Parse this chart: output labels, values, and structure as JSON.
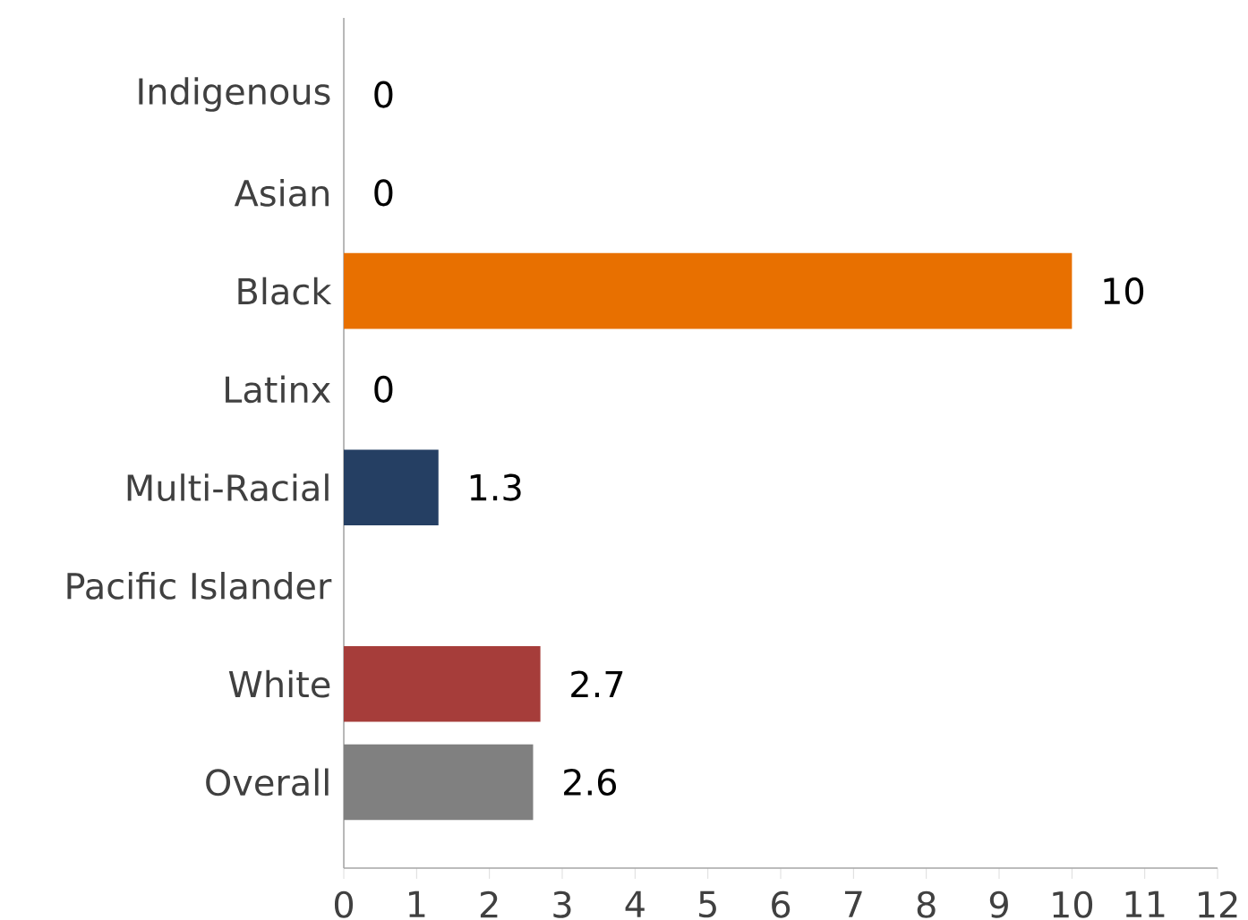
{
  "chart_data": {
    "type": "bar",
    "orientation": "horizontal",
    "categories": [
      "Indigenous",
      "Asian",
      "Black",
      "Latinx",
      "Multi-Racial",
      "Pacific Islander",
      "White",
      "Overall"
    ],
    "values": [
      0,
      0,
      10,
      0,
      1.3,
      null,
      2.7,
      2.6
    ],
    "colors": [
      null,
      null,
      "#e87000",
      null,
      "#253f63",
      null,
      "#a63d3a",
      "#808080"
    ],
    "xlim": [
      0,
      12
    ],
    "xticks": [
      0,
      1,
      2,
      3,
      4,
      5,
      6,
      7,
      8,
      9,
      10,
      11,
      12
    ],
    "data_labels": true,
    "grid": false
  }
}
